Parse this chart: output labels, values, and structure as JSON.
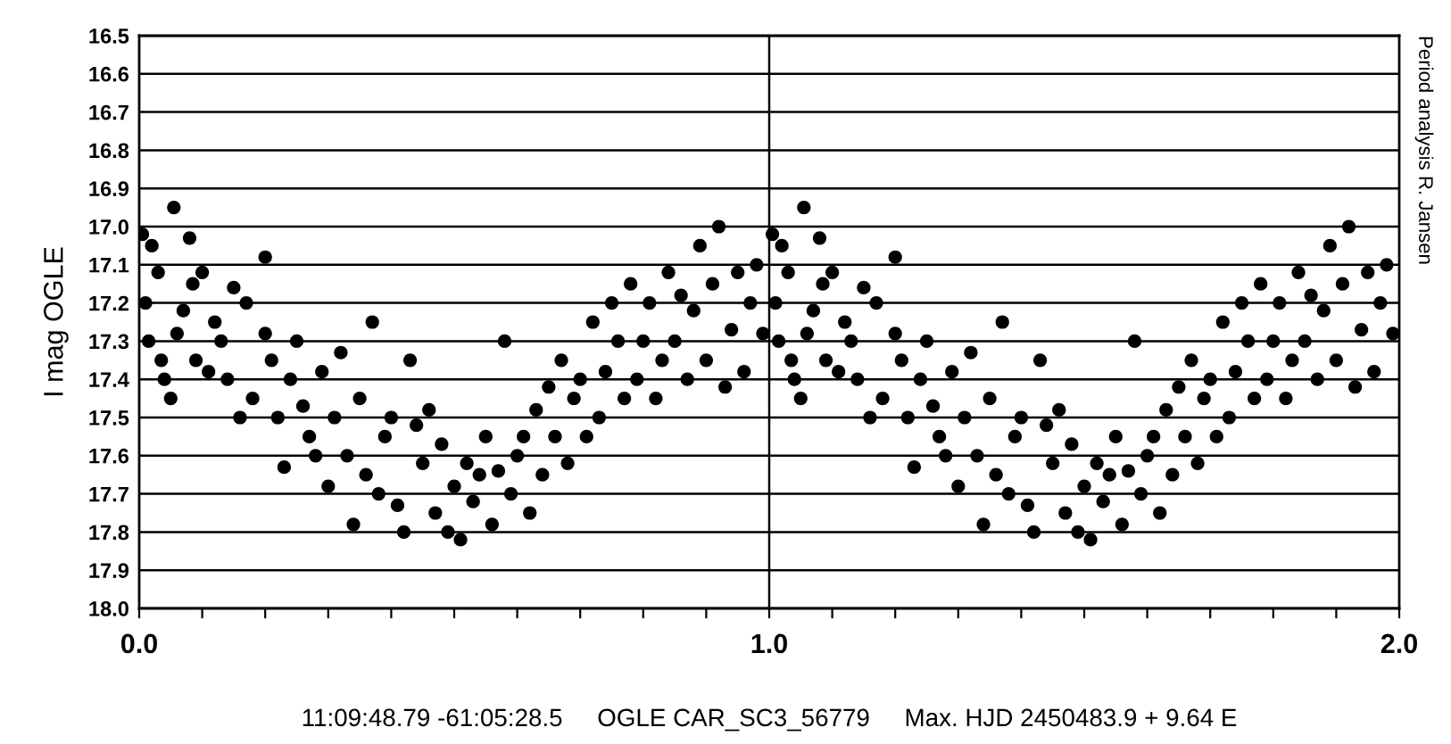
{
  "chart_data": {
    "type": "scatter",
    "ylabel": "I mag OGLE",
    "xlabel": "11:09:48.79 -61:05:28.5     OGLE CAR_SC3_56779     Max. HJD 2450483.9 + 9.64 E",
    "annotations": [
      "Period analysis R. Jansen"
    ],
    "xlim": [
      0,
      2
    ],
    "ylim": [
      18.0,
      16.5
    ],
    "xticks": [
      {
        "value": 0,
        "label": "0.0"
      },
      {
        "value": 0.1,
        "label": null
      },
      {
        "value": 0.2,
        "label": null
      },
      {
        "value": 0.3,
        "label": null
      },
      {
        "value": 0.4,
        "label": null
      },
      {
        "value": 0.5,
        "label": null
      },
      {
        "value": 0.6,
        "label": null
      },
      {
        "value": 0.7,
        "label": null
      },
      {
        "value": 0.8,
        "label": null
      },
      {
        "value": 0.9,
        "label": null
      },
      {
        "value": 1,
        "label": "1.0"
      },
      {
        "value": 1.1,
        "label": null
      },
      {
        "value": 1.2,
        "label": null
      },
      {
        "value": 1.3,
        "label": null
      },
      {
        "value": 1.4,
        "label": null
      },
      {
        "value": 1.5,
        "label": null
      },
      {
        "value": 1.6,
        "label": null
      },
      {
        "value": 1.7,
        "label": null
      },
      {
        "value": 1.8,
        "label": null
      },
      {
        "value": 1.9,
        "label": null
      },
      {
        "value": 2,
        "label": "2.0"
      }
    ],
    "yticks": [
      {
        "value": 16.5,
        "label": "16.5"
      },
      {
        "value": 16.6,
        "label": "16.6"
      },
      {
        "value": 16.7,
        "label": "16.7"
      },
      {
        "value": 16.8,
        "label": "16.8"
      },
      {
        "value": 16.9,
        "label": "16.9"
      },
      {
        "value": 17.0,
        "label": "17.0"
      },
      {
        "value": 17.1,
        "label": "17.1"
      },
      {
        "value": 17.2,
        "label": "17.2"
      },
      {
        "value": 17.3,
        "label": "17.3"
      },
      {
        "value": 17.4,
        "label": "17.4"
      },
      {
        "value": 17.5,
        "label": "17.5"
      },
      {
        "value": 17.6,
        "label": "17.6"
      },
      {
        "value": 17.7,
        "label": "17.7"
      },
      {
        "value": 17.8,
        "label": "17.8"
      },
      {
        "value": 17.9,
        "label": "17.9"
      },
      {
        "value": 18.0,
        "label": "18.0"
      }
    ],
    "grid": "y",
    "marker": "circle",
    "legend": false,
    "ref_lines": [
      {
        "axis": "x",
        "value": 1.0,
        "color": "#000000"
      }
    ],
    "series": [
      {
        "color": "#000000",
        "x": [
          0.005,
          0.01,
          0.015,
          0.02,
          0.03,
          0.035,
          0.04,
          0.05,
          0.055,
          0.06,
          0.07,
          0.08,
          0.085,
          0.09,
          0.1,
          0.11,
          0.12,
          0.13,
          0.14,
          0.15,
          0.16,
          0.17,
          0.18,
          0.2,
          0.2,
          0.21,
          0.22,
          0.23,
          0.24,
          0.25,
          0.26,
          0.27,
          0.28,
          0.29,
          0.3,
          0.31,
          0.32,
          0.33,
          0.34,
          0.35,
          0.36,
          0.37,
          0.38,
          0.39,
          0.4,
          0.41,
          0.42,
          0.43,
          0.44,
          0.45,
          0.46,
          0.47,
          0.48,
          0.49,
          0.5,
          0.51,
          0.52,
          0.53,
          0.54,
          0.55,
          0.56,
          0.57,
          0.58,
          0.59,
          0.6,
          0.61,
          0.62,
          0.63,
          0.64,
          0.65,
          0.66,
          0.67,
          0.68,
          0.69,
          0.7,
          0.71,
          0.72,
          0.73,
          0.74,
          0.75,
          0.76,
          0.77,
          0.78,
          0.79,
          0.8,
          0.81,
          0.82,
          0.83,
          0.84,
          0.85,
          0.86,
          0.87,
          0.88,
          0.89,
          0.9,
          0.91,
          0.92,
          0.93,
          0.94,
          0.95,
          0.96,
          0.97,
          0.98,
          0.99,
          1.005,
          1.01,
          1.015,
          1.02,
          1.03,
          1.035,
          1.04,
          1.05,
          1.055,
          1.06,
          1.07,
          1.08,
          1.085,
          1.09,
          1.1,
          1.11,
          1.12,
          1.13,
          1.14,
          1.15,
          1.16,
          1.17,
          1.18,
          1.2,
          1.2,
          1.21,
          1.22,
          1.23,
          1.24,
          1.25,
          1.26,
          1.27,
          1.28,
          1.29,
          1.3,
          1.31,
          1.32,
          1.33,
          1.34,
          1.35,
          1.36,
          1.37,
          1.38,
          1.39,
          1.4,
          1.41,
          1.42,
          1.43,
          1.44,
          1.45,
          1.46,
          1.47,
          1.48,
          1.49,
          1.5,
          1.51,
          1.52,
          1.53,
          1.54,
          1.55,
          1.56,
          1.57,
          1.58,
          1.59,
          1.6,
          1.61,
          1.62,
          1.63,
          1.64,
          1.65,
          1.66,
          1.67,
          1.68,
          1.69,
          1.7,
          1.71,
          1.72,
          1.73,
          1.74,
          1.75,
          1.76,
          1.77,
          1.78,
          1.79,
          1.8,
          1.81,
          1.82,
          1.83,
          1.84,
          1.85,
          1.86,
          1.87,
          1.88,
          1.89,
          1.9,
          1.91,
          1.92,
          1.93,
          1.94,
          1.95,
          1.96,
          1.97,
          1.98,
          1.99
        ],
        "values": [
          17.02,
          17.2,
          17.3,
          17.05,
          17.12,
          17.35,
          17.4,
          17.45,
          16.95,
          17.28,
          17.22,
          17.03,
          17.15,
          17.35,
          17.12,
          17.38,
          17.25,
          17.3,
          17.4,
          17.16,
          17.5,
          17.2,
          17.45,
          17.08,
          17.28,
          17.35,
          17.5,
          17.63,
          17.4,
          17.3,
          17.47,
          17.55,
          17.6,
          17.38,
          17.68,
          17.5,
          17.33,
          17.6,
          17.78,
          17.45,
          17.65,
          17.25,
          17.7,
          17.55,
          17.5,
          17.73,
          17.8,
          17.35,
          17.52,
          17.62,
          17.48,
          17.75,
          17.57,
          17.8,
          17.68,
          17.82,
          17.62,
          17.72,
          17.65,
          17.55,
          17.78,
          17.64,
          17.3,
          17.7,
          17.6,
          17.55,
          17.75,
          17.48,
          17.65,
          17.42,
          17.55,
          17.35,
          17.62,
          17.45,
          17.4,
          17.55,
          17.25,
          17.5,
          17.38,
          17.2,
          17.3,
          17.45,
          17.15,
          17.4,
          17.3,
          17.2,
          17.45,
          17.35,
          17.12,
          17.3,
          17.18,
          17.4,
          17.22,
          17.05,
          17.35,
          17.15,
          17.0,
          17.42,
          17.27,
          17.12,
          17.38,
          17.2,
          17.1,
          17.28,
          17.02,
          17.2,
          17.3,
          17.05,
          17.12,
          17.35,
          17.4,
          17.45,
          16.95,
          17.28,
          17.22,
          17.03,
          17.15,
          17.35,
          17.12,
          17.38,
          17.25,
          17.3,
          17.4,
          17.16,
          17.5,
          17.2,
          17.45,
          17.08,
          17.28,
          17.35,
          17.5,
          17.63,
          17.4,
          17.3,
          17.47,
          17.55,
          17.6,
          17.38,
          17.68,
          17.5,
          17.33,
          17.6,
          17.78,
          17.45,
          17.65,
          17.25,
          17.7,
          17.55,
          17.5,
          17.73,
          17.8,
          17.35,
          17.52,
          17.62,
          17.48,
          17.75,
          17.57,
          17.8,
          17.68,
          17.82,
          17.62,
          17.72,
          17.65,
          17.55,
          17.78,
          17.64,
          17.3,
          17.7,
          17.6,
          17.55,
          17.75,
          17.48,
          17.65,
          17.42,
          17.55,
          17.35,
          17.62,
          17.45,
          17.4,
          17.55,
          17.25,
          17.5,
          17.38,
          17.2,
          17.3,
          17.45,
          17.15,
          17.4,
          17.3,
          17.2,
          17.45,
          17.35,
          17.12,
          17.3,
          17.18,
          17.4,
          17.22,
          17.05,
          17.35,
          17.15,
          17.0,
          17.42,
          17.27,
          17.12,
          17.38,
          17.2,
          17.1,
          17.28
        ]
      }
    ]
  }
}
